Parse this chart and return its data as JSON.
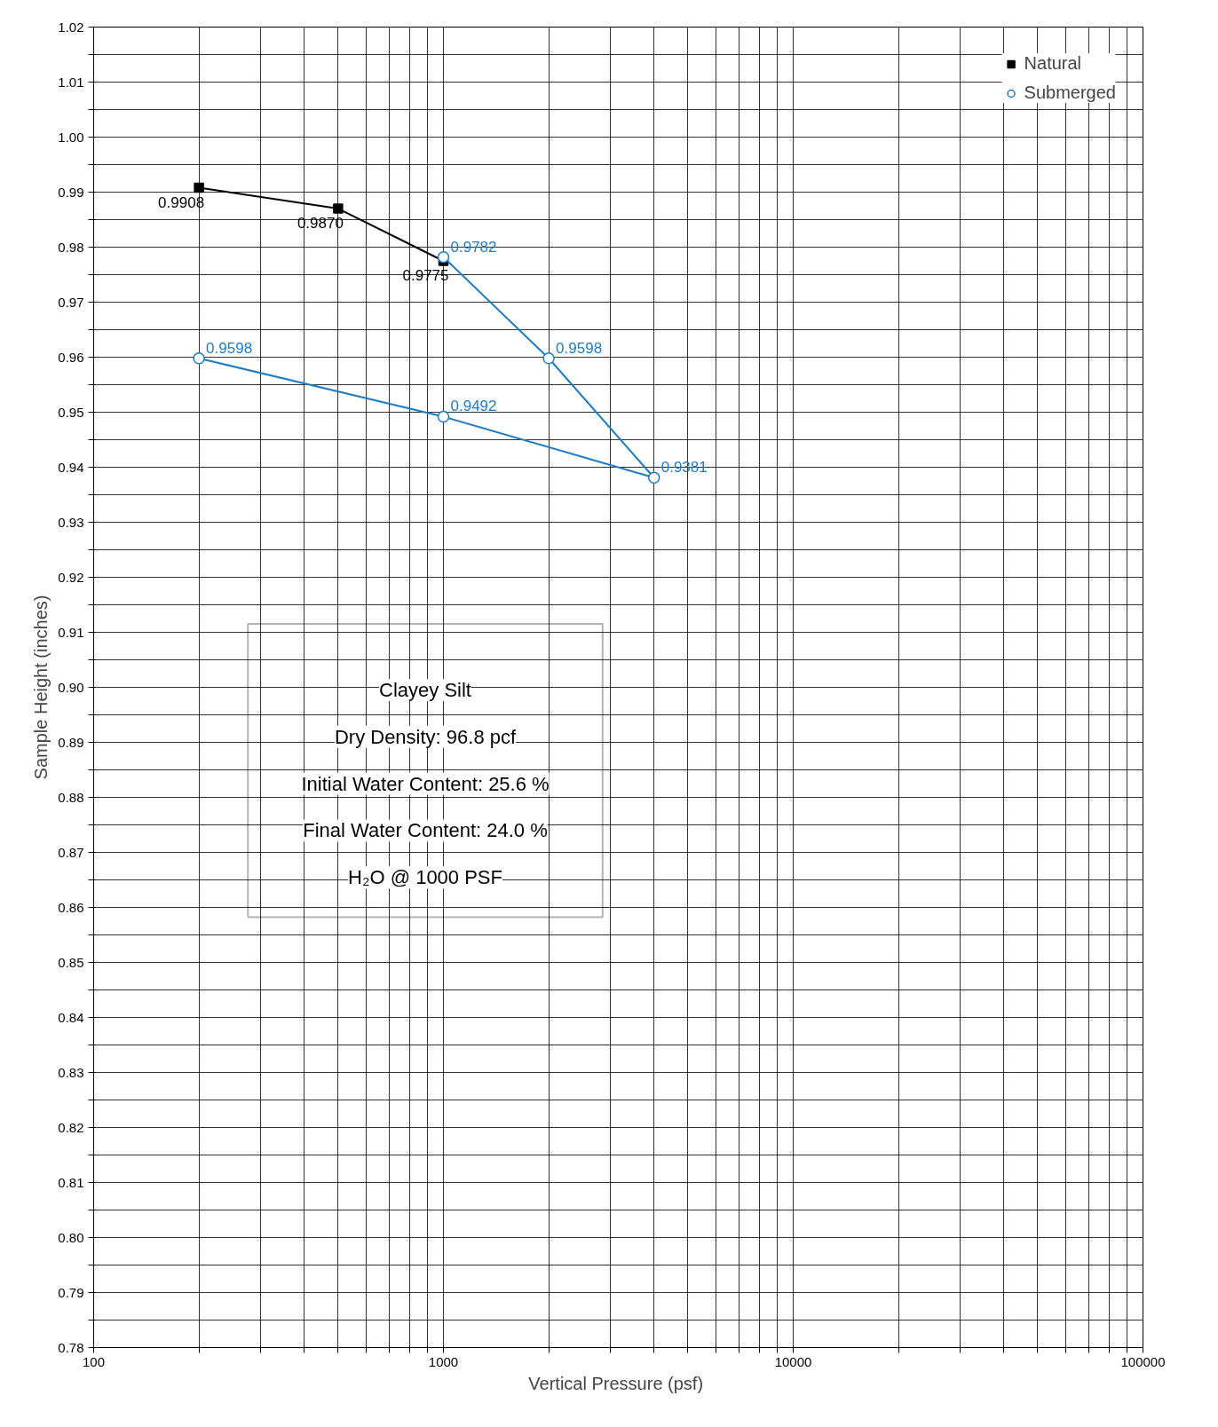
{
  "chart_data": {
    "type": "line",
    "xlabel": "Vertical Pressure  (psf)",
    "ylabel": "Sample Height (inches)",
    "log": "x",
    "series": [
      {
        "name": "Natural",
        "color": "#000000",
        "marker": "square",
        "x": [
          200,
          500,
          1000
        ],
        "values": [
          0.9908,
          0.987,
          0.9775
        ],
        "value_labels": [
          "0.9908",
          "0.9870",
          "0.9775"
        ]
      },
      {
        "name": "Submerged",
        "color": "#1f7bc1",
        "marker": "circle",
        "x": [
          1000,
          2000,
          4000,
          1000,
          200
        ],
        "values": [
          0.9782,
          0.9598,
          0.9381,
          0.9492,
          0.9598
        ],
        "value_labels": [
          "0.9782",
          "0.9598",
          "0.9381",
          "0.9492",
          "0.9598"
        ]
      }
    ],
    "xlim": [
      100,
      100000
    ],
    "ylim": [
      0.78,
      1.02
    ],
    "xticks": [
      100,
      {
        "value": 200,
        "label": null
      },
      {
        "value": 300,
        "label": null
      },
      {
        "value": 400,
        "label": null
      },
      {
        "value": 500,
        "label": null
      },
      {
        "value": 600,
        "label": null
      },
      {
        "value": 700,
        "label": null
      },
      {
        "value": 800,
        "label": null
      },
      {
        "value": 900,
        "label": null
      },
      1000,
      {
        "value": 2000,
        "label": null
      },
      {
        "value": 3000,
        "label": null
      },
      {
        "value": 4000,
        "label": null
      },
      {
        "value": 5000,
        "label": null
      },
      {
        "value": 6000,
        "label": null
      },
      {
        "value": 7000,
        "label": null
      },
      {
        "value": 8000,
        "label": null
      },
      {
        "value": 9000,
        "label": null
      },
      10000,
      {
        "value": 20000,
        "label": null
      },
      {
        "value": 30000,
        "label": null
      },
      {
        "value": 40000,
        "label": null
      },
      {
        "value": 50000,
        "label": null
      },
      {
        "value": 60000,
        "label": null
      },
      {
        "value": 70000,
        "label": null
      },
      {
        "value": 80000,
        "label": null
      },
      {
        "value": 90000,
        "label": null
      },
      100000
    ],
    "yticks": [
      {
        "value": 0.78,
        "label": "0.78"
      },
      {
        "value": 0.785,
        "label": null
      },
      {
        "value": 0.79,
        "label": "0.79"
      },
      {
        "value": 0.795,
        "label": null
      },
      {
        "value": 0.8,
        "label": "0.80"
      },
      {
        "value": 0.805,
        "label": null
      },
      {
        "value": 0.81,
        "label": "0.81"
      },
      {
        "value": 0.815,
        "label": null
      },
      {
        "value": 0.82,
        "label": "0.82"
      },
      {
        "value": 0.825,
        "label": null
      },
      {
        "value": 0.83,
        "label": "0.83"
      },
      {
        "value": 0.835,
        "label": null
      },
      {
        "value": 0.84,
        "label": "0.84"
      },
      {
        "value": 0.845,
        "label": null
      },
      {
        "value": 0.85,
        "label": "0.85"
      },
      {
        "value": 0.855,
        "label": null
      },
      {
        "value": 0.86,
        "label": "0.86"
      },
      {
        "value": 0.865,
        "label": null
      },
      {
        "value": 0.87,
        "label": "0.87"
      },
      {
        "value": 0.875,
        "label": null
      },
      {
        "value": 0.88,
        "label": "0.88"
      },
      {
        "value": 0.885,
        "label": null
      },
      {
        "value": 0.89,
        "label": "0.89"
      },
      {
        "value": 0.895,
        "label": null
      },
      {
        "value": 0.9,
        "label": "0.90"
      },
      {
        "value": 0.905,
        "label": null
      },
      {
        "value": 0.91,
        "label": "0.91"
      },
      {
        "value": 0.915,
        "label": null
      },
      {
        "value": 0.92,
        "label": "0.92"
      },
      {
        "value": 0.925,
        "label": null
      },
      {
        "value": 0.93,
        "label": "0.93"
      },
      {
        "value": 0.935,
        "label": null
      },
      {
        "value": 0.94,
        "label": "0.94"
      },
      {
        "value": 0.945,
        "label": null
      },
      {
        "value": 0.95,
        "label": "0.95"
      },
      {
        "value": 0.955,
        "label": null
      },
      {
        "value": 0.96,
        "label": "0.96"
      },
      {
        "value": 0.965,
        "label": null
      },
      {
        "value": 0.97,
        "label": "0.97"
      },
      {
        "value": 0.975,
        "label": null
      },
      {
        "value": 0.98,
        "label": "0.98"
      },
      {
        "value": 0.985,
        "label": null
      },
      {
        "value": 0.99,
        "label": "0.99"
      },
      {
        "value": 0.995,
        "label": null
      },
      {
        "value": 1.0,
        "label": "1.00"
      },
      {
        "value": 1.005,
        "label": null
      },
      {
        "value": 1.01,
        "label": "1.01"
      },
      {
        "value": 1.015,
        "label": null
      },
      {
        "value": 1.02,
        "label": "1.02"
      }
    ],
    "grid": true,
    "legend": "top right",
    "annotations": [
      "Clayey Silt",
      "Dry Density: 96.8 pcf",
      "Initial Water Content: 25.6 %",
      "Final Water Content: 24.0 %",
      "H₂O @ 1000 PSF"
    ]
  }
}
